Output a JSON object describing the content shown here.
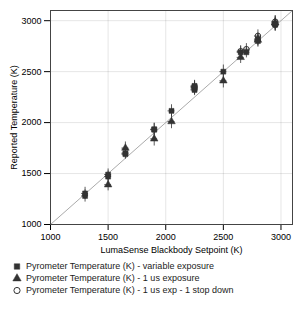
{
  "chart_data": {
    "type": "scatter",
    "xlabel": "LumaSense Blackbody Setpoint (K)",
    "ylabel": "Reported Temperature (K)",
    "xlim": [
      1000,
      3100
    ],
    "ylim": [
      1000,
      3100
    ],
    "xticks": [
      1000,
      1500,
      2000,
      2500,
      3000
    ],
    "yticks": [
      1000,
      1500,
      2000,
      2500,
      3000
    ],
    "grid": true,
    "legend": "bottom",
    "reference_line": {
      "x": [
        1000,
        3100
      ],
      "y": [
        1000,
        3100
      ],
      "color": "#aaaaaa"
    },
    "series": [
      {
        "name": "Pyrometer Temperature (K) - variable exposure",
        "marker": "square",
        "color": "#333333",
        "x": [
          1300,
          1300,
          1500,
          1500,
          1650,
          1650,
          1900,
          1900,
          2050,
          2250,
          2250,
          2250,
          2250,
          2250,
          2500,
          2650,
          2700,
          2800,
          2800,
          2950,
          2950
        ],
        "y": [
          1280,
          1305,
          1470,
          1490,
          1690,
          1700,
          1930,
          1935,
          2115,
          2320,
          2330,
          2345,
          2355,
          2360,
          2500,
          2690,
          2690,
          2800,
          2820,
          2960,
          2970
        ],
        "yerr": [
          60,
          60,
          55,
          55,
          50,
          50,
          60,
          60,
          60,
          55,
          55,
          55,
          55,
          55,
          65,
          55,
          55,
          60,
          60,
          65,
          65
        ],
        "xerr": [
          30,
          30,
          30,
          30,
          30,
          30,
          30,
          30,
          30,
          30,
          30,
          30,
          30,
          30,
          30,
          30,
          30,
          30,
          30,
          30,
          30
        ]
      },
      {
        "name": "Pyrometer Temperature (K) - 1 us exposure",
        "marker": "triangle",
        "color": "#333333",
        "x": [
          1500,
          1650,
          1900,
          2050,
          2500,
          2650,
          2800,
          2950
        ],
        "y": [
          1390,
          1750,
          1840,
          2010,
          2410,
          2640,
          2810,
          2980
        ],
        "yerr": [
          60,
          60,
          70,
          70,
          70,
          60,
          60,
          65
        ],
        "xerr": [
          30,
          30,
          30,
          30,
          30,
          30,
          30,
          30
        ]
      },
      {
        "name": "Pyrometer Temperature (K) - 1 us exp - 1 stop down",
        "marker": "open_circle",
        "color": "#333333",
        "x": [
          2650,
          2700,
          2800,
          2950,
          2950
        ],
        "y": [
          2700,
          2720,
          2850,
          2960,
          2990
        ],
        "yerr": [
          55,
          55,
          60,
          60,
          60
        ],
        "xerr": [
          30,
          30,
          30,
          30,
          30
        ]
      }
    ]
  }
}
